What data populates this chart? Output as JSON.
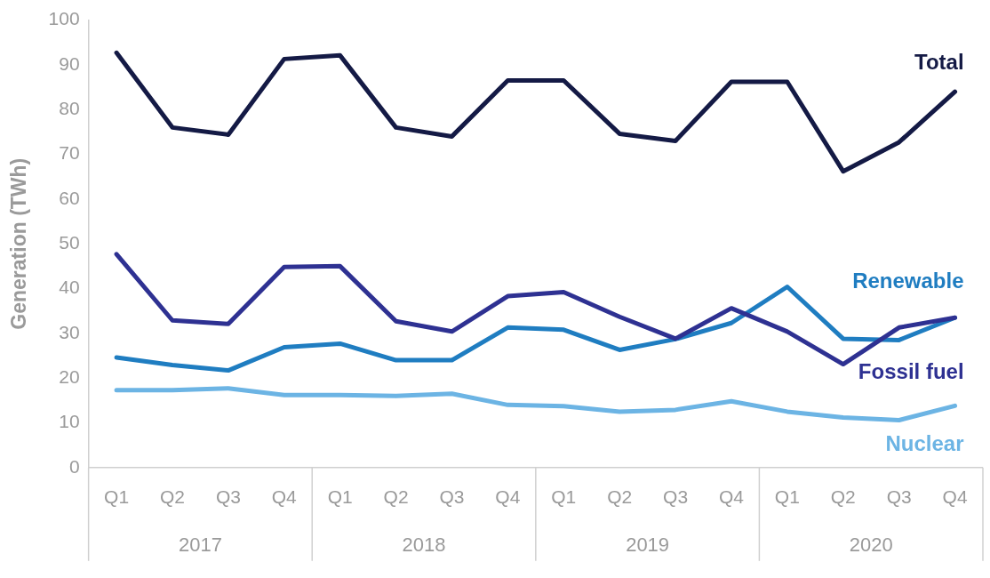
{
  "chart_data": {
    "type": "line",
    "ylabel": "Generation (TWh)",
    "categories": [
      "Q1",
      "Q2",
      "Q3",
      "Q4",
      "Q1",
      "Q2",
      "Q3",
      "Q4",
      "Q1",
      "Q2",
      "Q3",
      "Q4",
      "Q1",
      "Q2",
      "Q3",
      "Q4"
    ],
    "annotations": [
      "2017",
      "2018",
      "2019",
      "2020"
    ],
    "ylim": [
      0,
      100
    ],
    "yticks": [
      0,
      10,
      20,
      30,
      40,
      50,
      60,
      70,
      80,
      90,
      100
    ],
    "grid": false,
    "legend": false,
    "marker": "none",
    "line_style": "solid",
    "series": [
      {
        "name": "Total",
        "color": "#141a45",
        "values": [
          92.7,
          76,
          74.4,
          91.3,
          92.1,
          76,
          74,
          86.5,
          86.5,
          74.6,
          73,
          86.2,
          86.2,
          66.2,
          72.7,
          84
        ]
      },
      {
        "name": "Fossil fuel",
        "color": "#2e3192",
        "values": [
          47.7,
          32.9,
          32.1,
          44.8,
          45,
          32.7,
          30.4,
          38.3,
          39.2,
          33.7,
          28.8,
          35.6,
          30.4,
          23.1,
          31.3,
          33.5
        ]
      },
      {
        "name": "Renewable",
        "color": "#1f7dc1",
        "values": [
          24.6,
          22.9,
          21.7,
          26.9,
          27.7,
          24,
          24,
          31.3,
          30.8,
          26.3,
          28.7,
          32.3,
          40.4,
          28.8,
          28.5,
          33.5
        ]
      },
      {
        "name": "Nuclear",
        "color": "#6cb4e4",
        "values": [
          17.3,
          17.3,
          17.7,
          16.2,
          16.2,
          16,
          16.5,
          14,
          13.7,
          12.5,
          12.9,
          14.8,
          12.5,
          11.2,
          10.6,
          13.8
        ]
      }
    ]
  }
}
